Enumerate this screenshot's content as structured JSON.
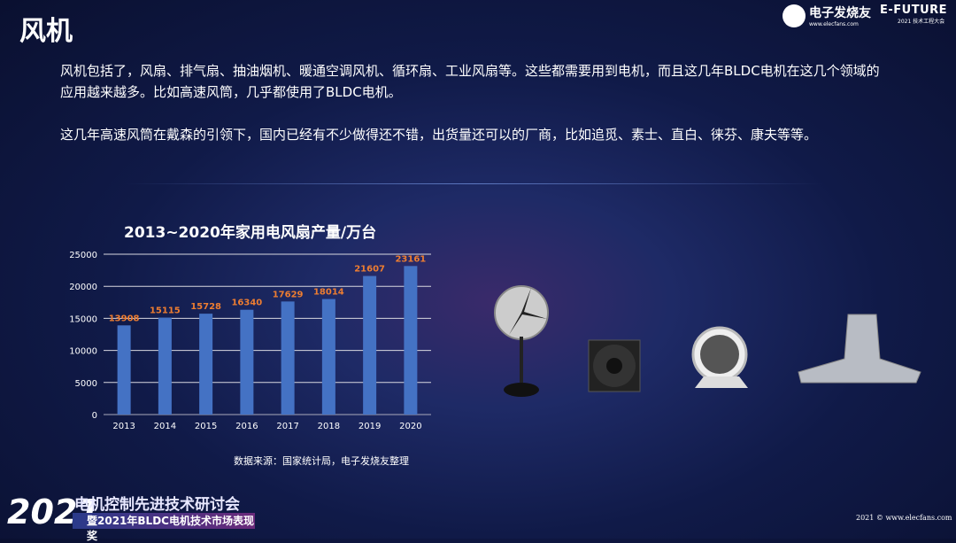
{
  "title": "风机",
  "logos": {
    "elecfans_name": "电子发烧友",
    "elecfans_url": "www.elecfans.com",
    "efuture_name": "E-FUTURE",
    "efuture_sub": "2021 技术工程大会"
  },
  "paragraphs": [
    "风机包括了，风扇、排气扇、抽油烟机、暖通空调风机、循环扇、工业风扇等。这些都需要用到电机，而且这几年BLDC电机在这几个领域的应用越来越多。比如高速风筒，几乎都使用了BLDC电机。",
    "这几年高速风筒在戴森的引领下，国内已经有不少做得还不错，出货量还可以的厂商，比如追觅、素士、直白、徕芬、康夫等等。"
  ],
  "chart_data": {
    "type": "bar",
    "title": "2013~2020年家用电风扇产量/万台",
    "categories": [
      "2013",
      "2014",
      "2015",
      "2016",
      "2017",
      "2018",
      "2019",
      "2020"
    ],
    "values": [
      13908,
      15115,
      15728,
      16340,
      17629,
      18014,
      21607,
      23161
    ],
    "ylim": [
      0,
      25000
    ],
    "yticks": [
      0,
      5000,
      10000,
      15000,
      20000,
      25000
    ],
    "grid": true,
    "bar_color": "#4472c4",
    "label_color": "#ed7d31"
  },
  "source": "数据来源：国家统计局，电子发烧友整理",
  "footer": {
    "year": "2021",
    "event": "电机控制先进技术研讨会",
    "sub": "暨2021年BLDC电机技术市场表现奖",
    "copyright": "2021 © www.elecfans.com"
  },
  "images": [
    "standing-fan",
    "axial-cooling-fan",
    "circulator-fan",
    "range-hood"
  ]
}
